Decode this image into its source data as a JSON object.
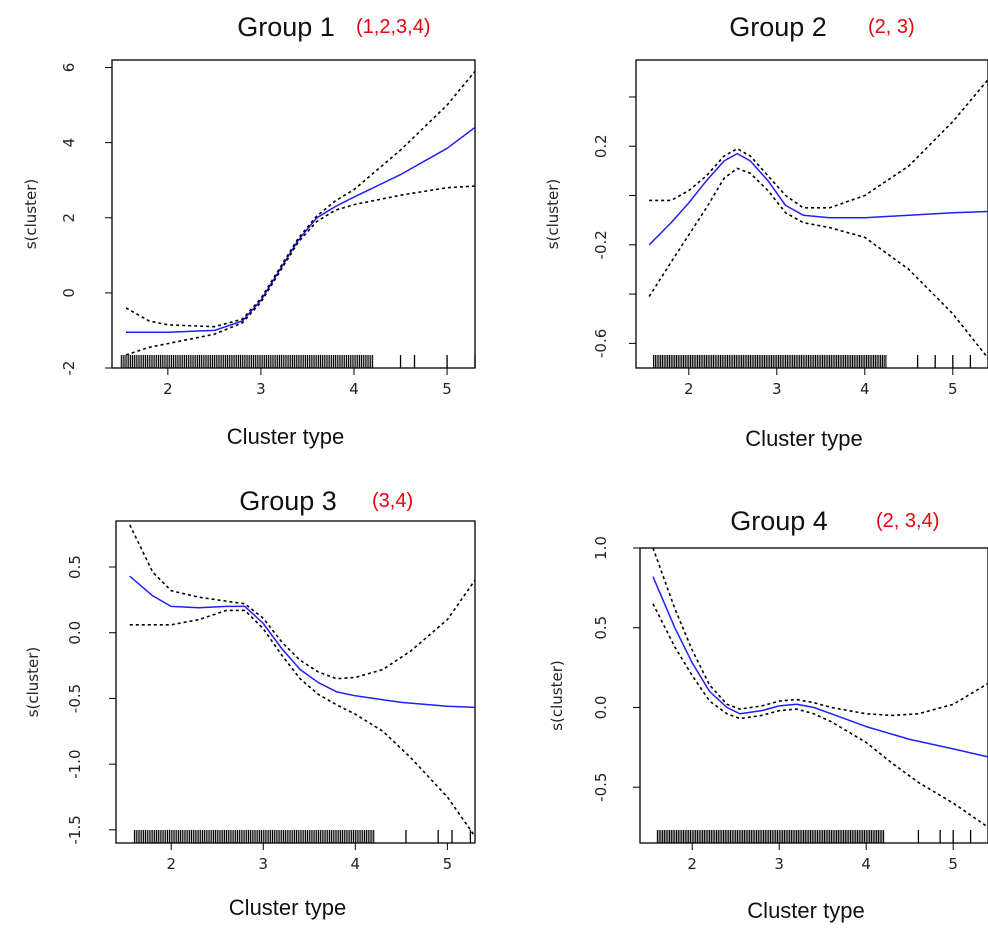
{
  "chart_data": [
    {
      "type": "line",
      "title": "Group 1",
      "annotation": "(1,2,3,4)",
      "xlabel": "Cluster type",
      "ylabel": "s(cluster)",
      "xlim": [
        1.4,
        5.3
      ],
      "ylim": [
        -2,
        6.2
      ],
      "xticks": [
        2,
        3,
        4,
        5
      ],
      "xticklabels": [
        "2",
        "3",
        "4",
        "5"
      ],
      "yticks": [
        -2,
        0,
        2,
        4,
        6
      ],
      "yticklabels": [
        "-2",
        "0",
        "2",
        "4",
        "6"
      ],
      "colors": {
        "fit": "#1f1fff",
        "band": "#000000"
      },
      "series": [
        {
          "role": "fit",
          "x": [
            1.55,
            2.0,
            2.5,
            2.8,
            3.0,
            3.2,
            3.4,
            3.6,
            3.8,
            4.0,
            4.5,
            5.0,
            5.35
          ],
          "y": [
            -1.05,
            -1.05,
            -1.0,
            -0.75,
            -0.2,
            0.6,
            1.4,
            2.0,
            2.3,
            2.55,
            3.15,
            3.85,
            4.5
          ]
        },
        {
          "role": "upper",
          "x": [
            1.55,
            1.8,
            2.0,
            2.5,
            2.8,
            3.0,
            3.2,
            3.4,
            3.6,
            3.8,
            4.0,
            4.5,
            5.0,
            5.35
          ],
          "y": [
            -0.4,
            -0.75,
            -0.85,
            -0.9,
            -0.7,
            -0.15,
            0.65,
            1.45,
            2.05,
            2.45,
            2.75,
            3.8,
            5.0,
            6.05
          ]
        },
        {
          "role": "lower",
          "x": [
            1.55,
            1.8,
            2.0,
            2.5,
            2.8,
            3.0,
            3.2,
            3.4,
            3.6,
            3.8,
            4.0,
            4.5,
            5.0,
            5.35
          ],
          "y": [
            -1.65,
            -1.45,
            -1.35,
            -1.1,
            -0.8,
            -0.25,
            0.55,
            1.35,
            1.9,
            2.2,
            2.35,
            2.6,
            2.8,
            2.85
          ]
        }
      ],
      "rug": {
        "from": 1.5,
        "to": 4.2,
        "extra": [
          4.5,
          4.65,
          5.0,
          5.3
        ]
      }
    },
    {
      "type": "line",
      "title": "Group 2",
      "annotation": "(2, 3)",
      "xlabel": "Cluster type",
      "ylabel": "s(cluster)",
      "xlim": [
        1.4,
        5.4
      ],
      "ylim": [
        -0.7,
        0.55
      ],
      "xticks": [
        2,
        3,
        4,
        5
      ],
      "xticklabels": [
        "2",
        "3",
        "4",
        "5"
      ],
      "yticks": [
        -0.6,
        -0.4,
        -0.2,
        0.0,
        0.2,
        0.4
      ],
      "yticklabels": [
        "-0.6",
        "",
        "-0.2",
        "",
        "0.2",
        ""
      ],
      "colors": {
        "fit": "#1f1fff",
        "band": "#000000"
      },
      "series": [
        {
          "role": "fit",
          "x": [
            1.55,
            1.8,
            2.0,
            2.2,
            2.4,
            2.55,
            2.7,
            2.9,
            3.1,
            3.3,
            3.6,
            4.0,
            4.5,
            5.0,
            5.4
          ],
          "y": [
            -0.2,
            -0.11,
            -0.03,
            0.06,
            0.14,
            0.17,
            0.14,
            0.06,
            -0.04,
            -0.08,
            -0.09,
            -0.09,
            -0.08,
            -0.07,
            -0.065
          ]
        },
        {
          "role": "upper",
          "x": [
            1.55,
            1.8,
            2.0,
            2.2,
            2.4,
            2.55,
            2.7,
            2.9,
            3.1,
            3.3,
            3.6,
            4.0,
            4.5,
            5.0,
            5.4
          ],
          "y": [
            -0.02,
            -0.02,
            0.02,
            0.08,
            0.16,
            0.19,
            0.16,
            0.08,
            0.0,
            -0.05,
            -0.05,
            0.0,
            0.12,
            0.3,
            0.47
          ]
        },
        {
          "role": "lower",
          "x": [
            1.55,
            1.8,
            2.0,
            2.2,
            2.4,
            2.55,
            2.7,
            2.9,
            3.1,
            3.3,
            3.6,
            4.0,
            4.5,
            5.0,
            5.4
          ],
          "y": [
            -0.41,
            -0.27,
            -0.16,
            -0.05,
            0.07,
            0.11,
            0.09,
            0.02,
            -0.07,
            -0.11,
            -0.13,
            -0.17,
            -0.3,
            -0.48,
            -0.66
          ]
        }
      ],
      "rug": {
        "from": 1.6,
        "to": 4.25,
        "extra": [
          4.6,
          4.8,
          5.0,
          5.2
        ]
      }
    },
    {
      "type": "line",
      "title": "Group 3",
      "annotation": "(3,4)",
      "xlabel": "Cluster type",
      "ylabel": "s(cluster)",
      "xlim": [
        1.4,
        5.3
      ],
      "ylim": [
        -1.6,
        0.85
      ],
      "xticks": [
        2,
        3,
        4,
        5
      ],
      "xticklabels": [
        "2",
        "3",
        "4",
        "5"
      ],
      "yticks": [
        -1.5,
        -1.0,
        -0.5,
        0.0,
        0.5
      ],
      "yticklabels": [
        "-1.5",
        "-1.0",
        "-0.5",
        "0.0",
        "0.5"
      ],
      "colors": {
        "fit": "#1f1fff",
        "band": "#000000"
      },
      "series": [
        {
          "role": "fit",
          "x": [
            1.55,
            1.8,
            2.0,
            2.3,
            2.6,
            2.8,
            3.0,
            3.2,
            3.4,
            3.6,
            3.8,
            4.0,
            4.5,
            5.0,
            5.35
          ],
          "y": [
            0.43,
            0.28,
            0.2,
            0.19,
            0.2,
            0.2,
            0.07,
            -0.12,
            -0.28,
            -0.38,
            -0.45,
            -0.48,
            -0.53,
            -0.56,
            -0.57
          ]
        },
        {
          "role": "upper",
          "x": [
            1.55,
            1.8,
            2.0,
            2.3,
            2.6,
            2.8,
            3.0,
            3.2,
            3.4,
            3.6,
            3.8,
            4.0,
            4.3,
            4.6,
            5.0,
            5.35
          ],
          "y": [
            0.82,
            0.46,
            0.32,
            0.27,
            0.24,
            0.22,
            0.11,
            -0.07,
            -0.21,
            -0.3,
            -0.35,
            -0.34,
            -0.28,
            -0.14,
            0.1,
            0.45
          ]
        },
        {
          "role": "lower",
          "x": [
            1.55,
            1.8,
            2.0,
            2.3,
            2.6,
            2.8,
            3.0,
            3.2,
            3.4,
            3.6,
            3.8,
            4.0,
            4.3,
            4.6,
            5.0,
            5.35
          ],
          "y": [
            0.06,
            0.06,
            0.06,
            0.1,
            0.17,
            0.17,
            0.03,
            -0.17,
            -0.35,
            -0.47,
            -0.55,
            -0.62,
            -0.75,
            -0.95,
            -1.25,
            -1.6
          ]
        }
      ],
      "rug": {
        "from": 1.6,
        "to": 4.2,
        "extra": [
          4.55,
          4.9,
          5.05,
          5.25
        ]
      }
    },
    {
      "type": "line",
      "title": "Group 4",
      "annotation": "(2, 3,4)",
      "xlabel": "Cluster type",
      "ylabel": "s(cluster)",
      "xlim": [
        1.4,
        5.4
      ],
      "ylim": [
        -0.85,
        1.0
      ],
      "xticks": [
        2,
        3,
        4,
        5
      ],
      "xticklabels": [
        "2",
        "3",
        "4",
        "5"
      ],
      "yticks": [
        -0.5,
        0.0,
        0.5,
        1.0
      ],
      "yticklabels": [
        "-0.5",
        "0.0",
        "0.5",
        "1.0"
      ],
      "colors": {
        "fit": "#1f1fff",
        "band": "#000000"
      },
      "series": [
        {
          "role": "fit",
          "x": [
            1.55,
            1.8,
            2.0,
            2.2,
            2.4,
            2.55,
            2.8,
            3.0,
            3.2,
            3.4,
            3.6,
            4.0,
            4.5,
            5.0,
            5.4
          ],
          "y": [
            0.82,
            0.5,
            0.28,
            0.1,
            0.0,
            -0.04,
            -0.02,
            0.01,
            0.02,
            0.0,
            -0.04,
            -0.12,
            -0.2,
            -0.26,
            -0.31
          ]
        },
        {
          "role": "upper",
          "x": [
            1.55,
            1.8,
            2.0,
            2.2,
            2.4,
            2.55,
            2.8,
            3.0,
            3.2,
            3.4,
            3.6,
            4.0,
            4.3,
            4.6,
            5.0,
            5.4
          ],
          "y": [
            1.0,
            0.62,
            0.36,
            0.14,
            0.02,
            -0.01,
            0.01,
            0.04,
            0.05,
            0.03,
            0.0,
            -0.04,
            -0.05,
            -0.04,
            0.02,
            0.15
          ]
        },
        {
          "role": "lower",
          "x": [
            1.55,
            1.8,
            2.0,
            2.2,
            2.4,
            2.55,
            2.8,
            3.0,
            3.2,
            3.4,
            3.6,
            4.0,
            4.3,
            4.6,
            5.0,
            5.4
          ],
          "y": [
            0.65,
            0.38,
            0.2,
            0.04,
            -0.04,
            -0.07,
            -0.05,
            -0.02,
            -0.01,
            -0.04,
            -0.09,
            -0.22,
            -0.35,
            -0.47,
            -0.6,
            -0.75
          ]
        }
      ],
      "rug": {
        "from": 1.6,
        "to": 4.2,
        "extra": [
          4.6,
          4.85,
          5.0,
          5.2
        ]
      }
    }
  ]
}
